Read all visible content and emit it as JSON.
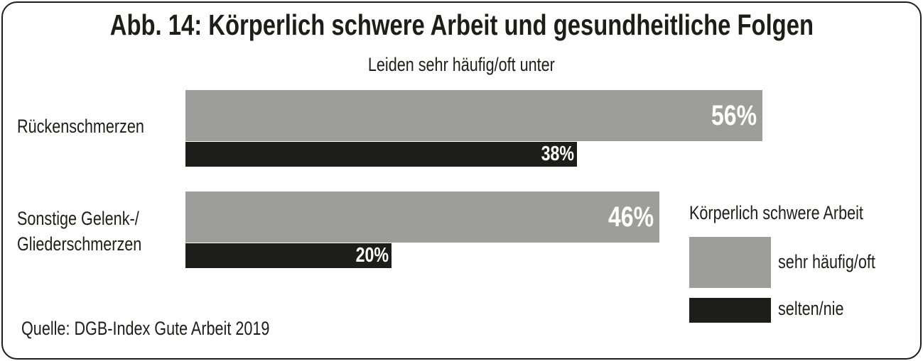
{
  "chart_data": {
    "type": "bar",
    "orientation": "horizontal",
    "title": "Abb. 14: Körperlich schwere Arbeit und gesundheitliche Folgen",
    "subtitle": "Leiden sehr häufig/oft unter",
    "categories": [
      "Rückenschmerzen",
      "Sonstige Gelenk-/ Gliederschmerzen"
    ],
    "category_lines": [
      [
        "Rückenschmerzen"
      ],
      [
        "Sonstige Gelenk-/",
        "Gliederschmerzen"
      ]
    ],
    "series": [
      {
        "name": "sehr häufig/oft",
        "values": [
          56,
          46
        ],
        "labels": [
          "56%",
          "46%"
        ],
        "color": "#9d9d9c"
      },
      {
        "name": "selten/nie",
        "values": [
          38,
          20
        ],
        "labels": [
          "38%",
          "20%"
        ],
        "color": "#1d1d1b"
      }
    ],
    "legend_title": "Körperlich schwere Arbeit",
    "legend_position": "bottom-right",
    "unit": "%",
    "grid": false,
    "source": "Quelle: DGB-Index Gute Arbeit 2019"
  }
}
